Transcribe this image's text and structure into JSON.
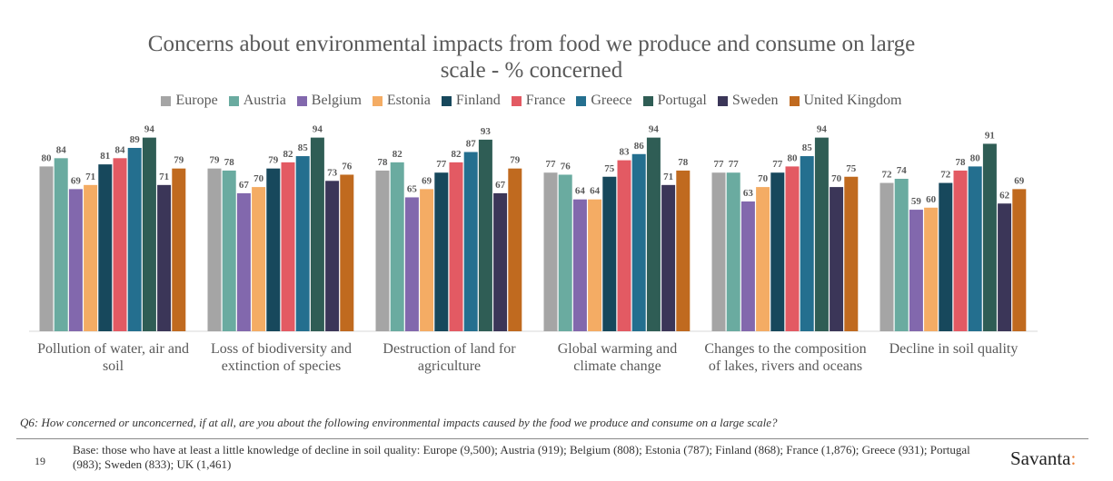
{
  "chart_data": {
    "type": "bar",
    "title": "Concerns about environmental impacts from food we produce and consume on large scale - % concerned",
    "categories": [
      "Pollution of water, air and soil",
      "Loss of biodiversity and extinction of species",
      "Destruction of land for agriculture",
      "Global warming and climate change",
      "Changes to the composition of lakes, rivers and oceans",
      "Decline in soil quality"
    ],
    "series": [
      {
        "name": "Europe",
        "color": "#a5a5a5",
        "values": [
          80,
          79,
          78,
          77,
          77,
          72
        ]
      },
      {
        "name": "Austria",
        "color": "#6aaba0",
        "values": [
          84,
          78,
          82,
          76,
          77,
          74
        ]
      },
      {
        "name": "Belgium",
        "color": "#8268ad",
        "values": [
          69,
          67,
          65,
          64,
          63,
          59
        ]
      },
      {
        "name": "Estonia",
        "color": "#f4ac64",
        "values": [
          71,
          70,
          69,
          64,
          70,
          60
        ]
      },
      {
        "name": "Finland",
        "color": "#17485c",
        "values": [
          81,
          79,
          77,
          75,
          77,
          72
        ]
      },
      {
        "name": "France",
        "color": "#e35a63",
        "values": [
          84,
          82,
          82,
          83,
          80,
          78
        ]
      },
      {
        "name": "Greece",
        "color": "#246f8f",
        "values": [
          89,
          85,
          87,
          86,
          85,
          80
        ]
      },
      {
        "name": "Portugal",
        "color": "#2f5d55",
        "values": [
          94,
          94,
          93,
          94,
          94,
          91
        ]
      },
      {
        "name": "Sweden",
        "color": "#3b3658",
        "values": [
          71,
          73,
          67,
          71,
          70,
          62
        ]
      },
      {
        "name": "United Kingdom",
        "color": "#c06a1f",
        "values": [
          79,
          76,
          79,
          78,
          75,
          69
        ]
      }
    ],
    "ylim": [
      0,
      100
    ]
  },
  "footer": {
    "question": "Q6: How concerned or unconcerned, if at all, are you about the following environmental impacts caused by the food we produce and consume on a large scale?",
    "page_number": "19",
    "base": "Base: those who have at least a little knowledge of decline in soil quality: Europe (9,500); Austria (919); Belgium (808); Estonia (787); Finland (868); France (1,876); Greece (931); Portugal (983); Sweden (833); UK (1,461)",
    "brand": "Savanta",
    "brand_mark": ":"
  }
}
